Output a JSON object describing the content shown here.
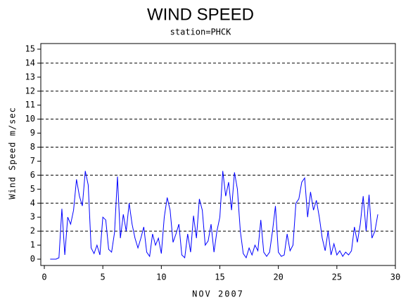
{
  "chart_data": {
    "type": "line",
    "title": "WIND SPEED",
    "subtitle": "station=PHCK",
    "x_label": "NOV 2007",
    "y_label": "Wind Speed m/sec",
    "xlim": [
      0,
      30
    ],
    "ylim": [
      0,
      15
    ],
    "xticks": [
      0,
      5,
      10,
      15,
      20,
      25,
      30
    ],
    "yticks": [
      0,
      1,
      2,
      3,
      4,
      5,
      6,
      7,
      8,
      9,
      10,
      11,
      12,
      13,
      14,
      15
    ],
    "grid_lines": [
      2,
      4,
      6,
      8,
      10,
      12,
      14
    ],
    "series": [
      {
        "name": "Wind Speed",
        "color": "#0000ff",
        "x": [
          0.5,
          0.75,
          1,
          1.25,
          1.5,
          1.75,
          2,
          2.25,
          2.5,
          2.75,
          3,
          3.25,
          3.5,
          3.75,
          4,
          4.25,
          4.5,
          4.75,
          5,
          5.25,
          5.5,
          5.75,
          6,
          6.25,
          6.5,
          6.75,
          7,
          7.25,
          7.5,
          7.75,
          8,
          8.25,
          8.5,
          8.75,
          9,
          9.25,
          9.5,
          9.75,
          10,
          10.25,
          10.5,
          10.75,
          11,
          11.25,
          11.5,
          11.75,
          12,
          12.25,
          12.5,
          12.75,
          13,
          13.25,
          13.5,
          13.75,
          14,
          14.25,
          14.5,
          14.75,
          15,
          15.25,
          15.5,
          15.75,
          16,
          16.25,
          16.5,
          16.75,
          17,
          17.25,
          17.5,
          17.75,
          18,
          18.25,
          18.5,
          18.75,
          19,
          19.25,
          19.5,
          19.75,
          20,
          20.25,
          20.5,
          20.75,
          21,
          21.25,
          21.5,
          21.75,
          22,
          22.25,
          22.5,
          22.75,
          23,
          23.25,
          23.5,
          23.75,
          24,
          24.25,
          24.5,
          24.75,
          25,
          25.25,
          25.5,
          25.75,
          26,
          26.25,
          26.5,
          26.75,
          27,
          27.25,
          27.5,
          27.75,
          28,
          28.25,
          28.5
        ],
        "values": [
          0,
          0,
          0,
          0.1,
          3.6,
          0.3,
          3,
          2.5,
          3.5,
          5.7,
          4.5,
          3.8,
          6.3,
          5.3,
          0.8,
          0.4,
          1,
          0.3,
          3,
          2.8,
          0.7,
          0.5,
          1.9,
          5.9,
          1.5,
          3.2,
          2,
          4,
          2.5,
          1.5,
          0.8,
          1.5,
          2.3,
          0.5,
          0.2,
          1.8,
          1,
          1.5,
          0.4,
          3,
          4.4,
          3.5,
          1.2,
          1.8,
          2.5,
          0.3,
          0.1,
          1.8,
          0.5,
          3.1,
          1.5,
          4.3,
          3.5,
          1,
          1.3,
          2.5,
          0.5,
          2,
          3,
          6.3,
          4.5,
          5.5,
          3.5,
          6.2,
          5,
          2,
          0.4,
          0.1,
          0.8,
          0.3,
          1,
          0.6,
          2.8,
          0.5,
          0.2,
          0.5,
          2,
          3.8,
          0.5,
          0.2,
          0.3,
          1.8,
          0.6,
          1,
          4,
          4.3,
          5.5,
          5.8,
          3,
          4.8,
          3.5,
          4.2,
          3,
          1.5,
          0.6,
          2,
          0.3,
          1.1,
          0.3,
          0.6,
          0.2,
          0.5,
          0.3,
          0.6,
          2.3,
          1.2,
          2.5,
          4.5,
          2,
          4.6,
          1.5,
          2,
          3.2
        ]
      }
    ]
  }
}
